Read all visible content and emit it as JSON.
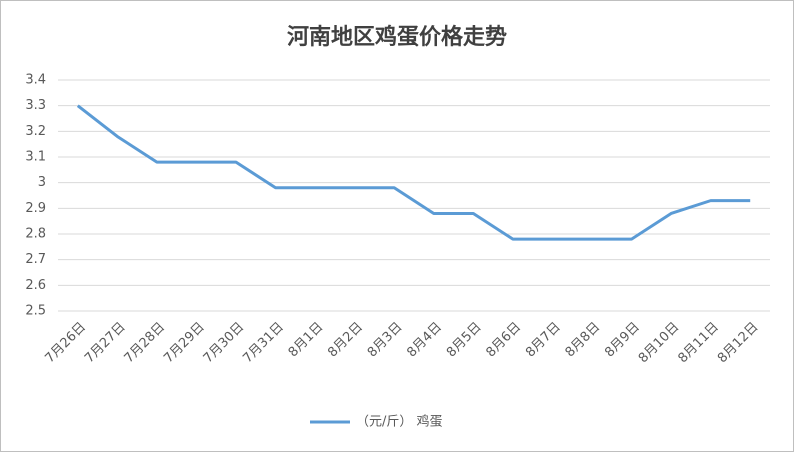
{
  "chart_data": {
    "type": "line",
    "title": "河南地区鸡蛋价格走势",
    "categories": [
      "7月26日",
      "7月27日",
      "7月28日",
      "7月29日",
      "7月30日",
      "7月31日",
      "8月1日",
      "8月2日",
      "8月3日",
      "8月4日",
      "8月5日",
      "8月6日",
      "8月7日",
      "8月8日",
      "8月9日",
      "8月10日",
      "8月11日",
      "8月12日"
    ],
    "series": [
      {
        "name": "（元/斤） 鸡蛋",
        "color": "#5b9bd5",
        "values": [
          3.3,
          3.18,
          3.08,
          3.08,
          3.08,
          2.98,
          2.98,
          2.98,
          2.98,
          2.88,
          2.88,
          2.78,
          2.78,
          2.78,
          2.78,
          2.88,
          2.93,
          2.93
        ]
      }
    ],
    "ylim": [
      2.5,
      3.4
    ],
    "yticks": [
      2.5,
      2.6,
      2.7,
      2.8,
      2.9,
      3,
      3.1,
      3.2,
      3.3,
      3.4
    ],
    "grid": true,
    "legend": "bottom"
  }
}
